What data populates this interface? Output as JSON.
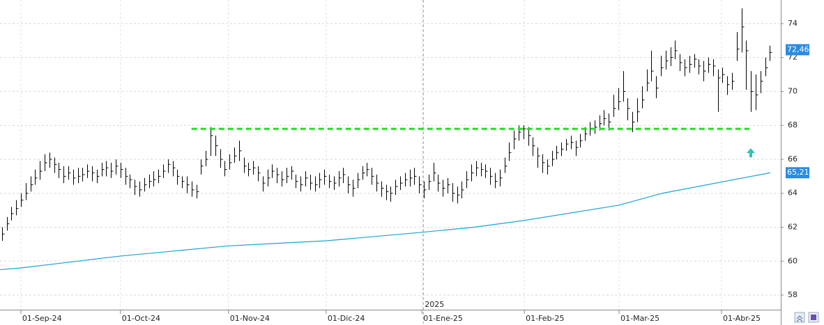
{
  "chart_data": {
    "type": "ohlc",
    "xlim": [
      -0.4,
      164.3
    ],
    "xticks": [
      {
        "value": 4,
        "label": "01-Sep-24"
      },
      {
        "value": 25,
        "label": "01-Oct-24"
      },
      {
        "value": 47.8,
        "label": "01-Nov-24"
      },
      {
        "value": 68.4,
        "label": "01-Dic-24"
      },
      {
        "value": 88.6,
        "label": "01-Ene-25"
      },
      {
        "value": 110.2,
        "label": "01-Feb-25"
      },
      {
        "value": 130.2,
        "label": "01-Mar-25"
      },
      {
        "value": 151.8,
        "label": "01-Abr-25"
      }
    ],
    "year_marker": {
      "value": 88.9,
      "label": "2025"
    },
    "ylim": [
      57.14,
      75.39
    ],
    "yticks": [
      58,
      60,
      62,
      64,
      66,
      68,
      70,
      72,
      74
    ],
    "grid": true,
    "color": "#000000",
    "high": [
      62.0,
      62.6,
      63.2,
      63.6,
      64.0,
      64.6,
      65.0,
      65.4,
      65.9,
      66.3,
      66.4,
      66.1,
      65.8,
      65.6,
      65.6,
      65.4,
      65.5,
      65.5,
      65.7,
      65.6,
      65.4,
      65.8,
      65.9,
      65.8,
      66.0,
      65.8,
      65.5,
      65.1,
      64.8,
      64.7,
      64.9,
      65.1,
      65.3,
      65.4,
      65.7,
      66.0,
      65.9,
      65.4,
      65.0,
      65.0,
      64.7,
      64.5,
      66.0,
      66.5,
      67.9,
      67.4,
      66.6,
      65.9,
      66.3,
      66.7,
      67.1,
      66.1,
      65.8,
      65.9,
      65.6,
      65.0,
      65.4,
      65.7,
      65.5,
      65.3,
      65.5,
      65.6,
      65.1,
      65.0,
      65.3,
      65.1,
      65.0,
      65.2,
      65.4,
      65.1,
      65.0,
      65.3,
      65.5,
      65.0,
      64.8,
      65.2,
      65.6,
      65.8,
      65.5,
      65.1,
      64.7,
      64.5,
      64.4,
      64.8,
      65.0,
      65.2,
      65.4,
      65.5,
      65.0,
      64.7,
      65.1,
      65.8,
      65.1,
      64.8,
      64.9,
      64.6,
      64.4,
      64.7,
      65.3,
      65.7,
      65.9,
      65.8,
      65.7,
      65.5,
      65.2,
      65.4,
      66.1,
      67.0,
      67.7,
      68.0,
      68.0,
      67.9,
      67.3,
      66.7,
      66.3,
      66.0,
      66.5,
      66.8,
      67.0,
      67.2,
      67.4,
      67.1,
      67.5,
      67.9,
      68.2,
      68.3,
      68.6,
      68.9,
      68.7,
      69.8,
      70.2,
      71.2,
      69.6,
      68.8,
      69.6,
      70.3,
      71.3,
      72.4,
      70.9,
      72.1,
      72.4,
      72.6,
      73.0,
      72.2,
      71.9,
      72.1,
      72.2,
      71.9,
      71.8,
      72.0,
      71.9,
      71.3,
      71.4,
      70.9,
      71.1,
      73.5,
      74.9,
      73.0,
      71.2,
      71.0,
      71.2,
      72.0,
      72.7
    ],
    "low": [
      61.2,
      61.8,
      62.4,
      62.7,
      63.2,
      63.6,
      64.1,
      64.5,
      64.8,
      65.3,
      65.5,
      65.2,
      64.9,
      64.6,
      64.8,
      64.5,
      64.6,
      64.7,
      64.9,
      64.7,
      64.6,
      65.0,
      65.0,
      64.9,
      65.1,
      64.9,
      64.5,
      64.3,
      63.9,
      63.8,
      64.1,
      64.3,
      64.4,
      64.6,
      64.9,
      65.2,
      65.0,
      64.5,
      64.3,
      64.0,
      63.8,
      63.7,
      65.1,
      65.6,
      66.2,
      66.2,
      65.5,
      65.0,
      65.4,
      65.8,
      65.9,
      65.2,
      65.0,
      65.1,
      64.7,
      64.1,
      64.4,
      64.9,
      64.6,
      64.4,
      64.6,
      64.8,
      64.3,
      64.1,
      64.4,
      64.2,
      64.1,
      64.3,
      64.5,
      64.3,
      64.2,
      64.4,
      64.6,
      64.0,
      63.8,
      64.3,
      64.8,
      65.0,
      64.5,
      64.1,
      63.8,
      63.6,
      63.5,
      63.9,
      64.2,
      64.4,
      64.4,
      64.5,
      64.0,
      63.7,
      64.2,
      64.7,
      64.1,
      63.8,
      64.0,
      63.5,
      63.4,
      63.7,
      64.3,
      64.7,
      65.0,
      65.0,
      64.9,
      64.5,
      64.3,
      64.4,
      65.2,
      65.9,
      66.6,
      67.1,
      67.2,
      66.8,
      66.2,
      65.5,
      65.2,
      65.1,
      65.6,
      66.0,
      66.2,
      66.5,
      66.6,
      66.2,
      66.7,
      67.1,
      67.4,
      67.5,
      67.7,
      68.0,
      67.7,
      68.5,
      68.9,
      69.4,
      68.3,
      67.6,
      68.2,
      69.0,
      70.0,
      70.6,
      69.6,
      70.9,
      71.3,
      71.5,
      71.9,
      71.2,
      70.9,
      71.1,
      71.4,
      71.0,
      70.6,
      71.1,
      70.9,
      68.8,
      70.5,
      69.8,
      70.1,
      71.8,
      72.3,
      70.1,
      68.8,
      68.9,
      69.9,
      70.9,
      71.8
    ],
    "close": [
      61.6,
      62.2,
      62.8,
      63.1,
      63.6,
      64.0,
      64.5,
      64.9,
      65.3,
      65.8,
      66.0,
      65.7,
      65.4,
      65.0,
      65.2,
      64.9,
      65.0,
      65.1,
      65.3,
      65.2,
      65.0,
      65.4,
      65.5,
      65.3,
      65.6,
      65.4,
      65.0,
      64.8,
      64.4,
      64.2,
      64.5,
      64.7,
      64.8,
      65.0,
      65.3,
      65.7,
      65.5,
      65.0,
      64.7,
      64.5,
      64.2,
      64.1,
      65.6,
      66.0,
      67.4,
      66.8,
      66.0,
      65.4,
      65.8,
      66.2,
      66.5,
      65.6,
      65.4,
      65.5,
      65.2,
      64.6,
      64.9,
      65.3,
      65.1,
      64.8,
      65.0,
      65.3,
      64.7,
      64.5,
      64.9,
      64.6,
      64.5,
      64.8,
      65.0,
      64.7,
      64.6,
      64.9,
      65.1,
      64.5,
      64.3,
      64.8,
      65.2,
      65.4,
      65.0,
      64.6,
      64.3,
      64.1,
      64.0,
      64.4,
      64.6,
      64.8,
      64.9,
      65.0,
      64.5,
      64.2,
      64.7,
      65.2,
      64.6,
      64.3,
      64.5,
      64.0,
      63.9,
      64.2,
      64.8,
      65.2,
      65.5,
      65.4,
      65.3,
      65.0,
      64.7,
      64.9,
      65.6,
      66.4,
      67.2,
      67.6,
      67.8,
      67.4,
      66.8,
      66.2,
      65.8,
      65.6,
      66.0,
      66.4,
      66.6,
      66.9,
      67.0,
      66.7,
      67.1,
      67.5,
      67.8,
      67.9,
      68.1,
      68.4,
      68.2,
      69.0,
      69.4,
      70.0,
      69.0,
      68.2,
      68.8,
      69.5,
      70.5,
      71.2,
      70.2,
      71.4,
      71.8,
      72.0,
      72.4,
      71.7,
      71.4,
      71.6,
      71.9,
      71.5,
      71.2,
      71.6,
      71.5,
      70.8,
      71.0,
      70.4,
      70.6,
      72.5,
      73.8,
      72.4,
      70.0,
      69.8,
      70.6,
      71.4,
      72.3
    ],
    "moving_average": {
      "color": "#1aa3d8",
      "x": [
        -0.4,
        4,
        25,
        47.8,
        68.4,
        88.6,
        99.6,
        110.2,
        130.2,
        139.3,
        162.1
      ],
      "values": [
        59.5,
        59.6,
        60.3,
        60.9,
        61.2,
        61.7,
        62.0,
        62.4,
        63.3,
        64.0,
        65.21
      ]
    },
    "resistance": {
      "value": 67.8,
      "x": [
        40,
        157.7
      ],
      "color": "#22dd22"
    },
    "price_labels": [
      {
        "value": 72.46,
        "label": "72,46"
      },
      {
        "value": 65.21,
        "label": "65,21"
      }
    ],
    "price_label_color": "#2b8be0"
  }
}
